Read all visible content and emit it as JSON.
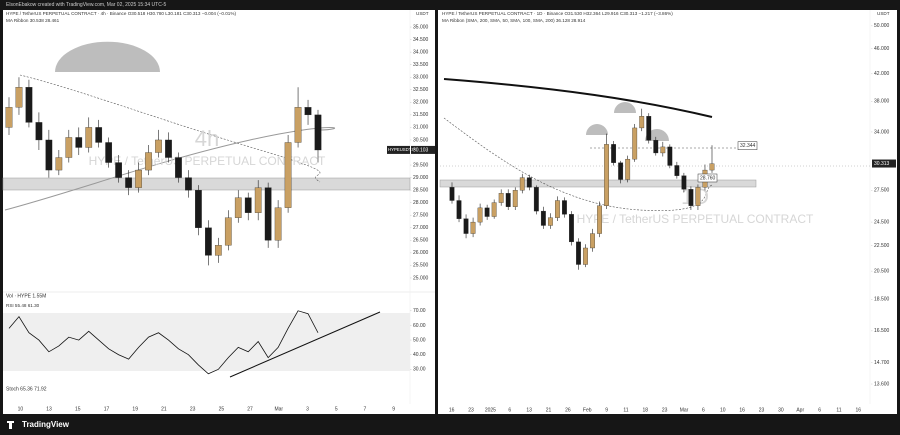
{
  "top_note": "ElsonEbakow created with TradingView.com, Mar 02, 2025 15:34 UTC-5",
  "chart_data": [
    {
      "type": "candlestick",
      "title": "HYPE / TetherUS PERPETUAL CONTRACT · 4h · Binance  O30.518 H30.780 L30.181 C30.313 −0.004 (−0.01%)",
      "indicator": "MA Ribbon 30.538 28.461",
      "watermark_interval": "4h",
      "watermark_symbol": "HYPE / TetherUS PERPETUAL CONTRACT",
      "currency": "USDT",
      "symbol_tag": "HYPEUSDT.P",
      "last_price": {
        "value": 30.103,
        "label": "30.103"
      },
      "volume_note": "Vol · HYPE 1.55M",
      "up_color": "#c9a063",
      "down_color": "#1a1a1a",
      "open": [
        31.0,
        31.8,
        32.6,
        31.2,
        30.5,
        29.3,
        29.8,
        30.6,
        30.2,
        31.0,
        30.4,
        29.6,
        29.0,
        28.6,
        29.3,
        30.0,
        30.5,
        29.8,
        29.0,
        28.5,
        27.0,
        25.9,
        26.3,
        27.4,
        28.2,
        27.6,
        28.6,
        26.5,
        27.8,
        30.4,
        31.8,
        31.5
      ],
      "high": [
        32.2,
        33.0,
        32.9,
        31.6,
        30.9,
        30.1,
        30.9,
        31.0,
        31.4,
        31.3,
        30.6,
        29.9,
        29.3,
        29.6,
        30.3,
        30.9,
        30.8,
        30.0,
        29.3,
        28.7,
        27.3,
        26.6,
        27.7,
        28.5,
        28.4,
        28.9,
        28.8,
        28.1,
        30.7,
        32.6,
        32.1,
        31.7
      ],
      "low": [
        30.7,
        31.5,
        31.0,
        30.1,
        29.0,
        29.1,
        29.6,
        29.9,
        30.0,
        30.2,
        29.4,
        28.8,
        28.3,
        28.4,
        29.1,
        29.8,
        29.6,
        28.8,
        28.2,
        26.7,
        25.5,
        25.6,
        26.1,
        27.2,
        27.3,
        27.3,
        26.2,
        26.2,
        27.6,
        30.2,
        31.1,
        29.6
      ],
      "close": [
        31.8,
        32.6,
        31.2,
        30.5,
        29.3,
        29.8,
        30.6,
        30.2,
        31.0,
        30.4,
        29.6,
        29.0,
        28.6,
        29.3,
        30.0,
        30.5,
        29.8,
        29.0,
        28.5,
        27.0,
        25.9,
        26.3,
        27.4,
        28.2,
        27.6,
        28.6,
        26.5,
        27.8,
        30.4,
        31.8,
        31.5,
        30.1
      ],
      "ylim": [
        24.6,
        35.6
      ],
      "yticks": [
        {
          "value": 35,
          "label": "35.000"
        },
        {
          "value": 34.5,
          "label": "34.500"
        },
        {
          "value": 34,
          "label": "34.000"
        },
        {
          "value": 33.5,
          "label": "33.500"
        },
        {
          "value": 33,
          "label": "33.000"
        },
        {
          "value": 32.5,
          "label": "32.500"
        },
        {
          "value": 32,
          "label": "32.000"
        },
        {
          "value": 31.5,
          "label": "31.500"
        },
        {
          "value": 31,
          "label": "31.000"
        },
        {
          "value": 30.5,
          "label": "30.500"
        },
        {
          "value": 29.5,
          "label": "29.500"
        },
        {
          "value": 29,
          "label": "29.000"
        },
        {
          "value": 28.5,
          "label": "28.500"
        },
        {
          "value": 28,
          "label": "28.000"
        },
        {
          "value": 27.5,
          "label": "27.500"
        },
        {
          "value": 27,
          "label": "27.000"
        },
        {
          "value": 26.5,
          "label": "26.500"
        },
        {
          "value": 26,
          "label": "26.000"
        },
        {
          "value": 25.5,
          "label": "25.500"
        },
        {
          "value": 25,
          "label": "25.000"
        }
      ],
      "x_labels": [
        "10",
        "13",
        "15",
        "17",
        "19",
        "21",
        "23",
        "25",
        "27",
        "Mar",
        "3",
        "5",
        "7",
        "9"
      ]
    },
    {
      "type": "line",
      "title": "RSI 55.48 61.30",
      "footer_note": "Stoch 65.36 71.92",
      "color": "#111111",
      "values": [
        58,
        66,
        55,
        50,
        42,
        46,
        52,
        50,
        56,
        50,
        44,
        40,
        37,
        45,
        52,
        55,
        50,
        44,
        40,
        33,
        27,
        30,
        38,
        45,
        42,
        49,
        38,
        45,
        58,
        70,
        68,
        55
      ],
      "ylim": [
        20,
        76
      ],
      "yticks": [
        {
          "value": 70,
          "label": "70.00"
        },
        {
          "value": 60,
          "label": "60.00"
        },
        {
          "value": 50,
          "label": "50.00"
        },
        {
          "value": 40,
          "label": "40.00"
        },
        {
          "value": 30,
          "label": "30.00"
        }
      ]
    },
    {
      "type": "candlestick",
      "title": "HYPE / TetherUS PERPETUAL CONTRACT · 1D · Binance  O31.530 H32.364 L29.916 C30.313 −1.217 (−3.86%)",
      "indicator": "MA Ribbon (SMA, 200, SMA, 50, SMA, 100, SMA, 200) 36.128 28.914",
      "watermark_interval": "1D",
      "watermark_symbol": "HYPE / TetherUS PERPETUAL CONTRACT",
      "currency": "USDT",
      "last_price": {
        "value": 30.313,
        "label": "30.313"
      },
      "price_flags": [
        {
          "value": 32.344,
          "label": "32.344"
        },
        {
          "value": 28.76,
          "label": "28.760"
        }
      ],
      "log_scale": true,
      "up_color": "#c9a063",
      "down_color": "#1a1a1a",
      "open": [
        27.8,
        26.5,
        24.8,
        23.5,
        24.5,
        25.8,
        25.0,
        26.3,
        27.2,
        25.9,
        27.5,
        28.8,
        27.8,
        25.5,
        24.2,
        24.9,
        26.5,
        25.2,
        22.8,
        21.0,
        22.3,
        23.5,
        26.0,
        32.5,
        30.4,
        28.6,
        30.8,
        34.5,
        36.0,
        33.0,
        31.5,
        32.2,
        30.1,
        29.0,
        27.6,
        26.0,
        27.8,
        29.6
      ],
      "high": [
        28.3,
        27.0,
        25.2,
        24.9,
        26.2,
        26.1,
        26.6,
        27.6,
        27.6,
        27.8,
        29.2,
        29.1,
        28.0,
        25.9,
        25.3,
        26.9,
        26.8,
        25.5,
        23.1,
        22.6,
        23.9,
        26.4,
        33.8,
        32.9,
        30.6,
        31.2,
        35.0,
        37.0,
        36.4,
        33.4,
        32.8,
        32.5,
        30.5,
        29.3,
        27.9,
        28.1,
        30.2,
        32.4
      ],
      "low": [
        26.2,
        24.5,
        23.1,
        23.2,
        24.2,
        24.7,
        24.8,
        26.0,
        25.6,
        25.6,
        27.2,
        27.5,
        25.2,
        23.9,
        23.9,
        24.6,
        24.9,
        22.5,
        20.6,
        20.8,
        22.0,
        23.2,
        25.7,
        30.1,
        28.2,
        28.3,
        30.5,
        34.1,
        32.6,
        31.2,
        31.1,
        29.8,
        28.7,
        27.3,
        25.6,
        25.6,
        27.5,
        29.3
      ],
      "close": [
        26.5,
        24.8,
        23.5,
        24.5,
        25.8,
        25.0,
        26.3,
        27.2,
        25.9,
        27.5,
        28.8,
        27.8,
        25.5,
        24.2,
        24.9,
        26.5,
        25.2,
        22.8,
        21.0,
        22.3,
        23.5,
        26.0,
        32.5,
        30.4,
        28.6,
        30.8,
        34.5,
        36.0,
        33.0,
        31.5,
        32.2,
        30.1,
        29.0,
        27.6,
        26.0,
        27.8,
        29.6,
        30.3
      ],
      "ylim": [
        12.74,
        52.2
      ],
      "yticks": [
        {
          "value": 50,
          "label": "50.000"
        },
        {
          "value": 46,
          "label": "46.000"
        },
        {
          "value": 42,
          "label": "42.000"
        },
        {
          "value": 38,
          "label": "38.000"
        },
        {
          "value": 34,
          "label": "34.000"
        },
        {
          "value": 27.5,
          "label": "27.500"
        },
        {
          "value": 24.5,
          "label": "24.500"
        },
        {
          "value": 22.5,
          "label": "22.500"
        },
        {
          "value": 20.5,
          "label": "20.500"
        },
        {
          "value": 18.5,
          "label": "18.500"
        },
        {
          "value": 16.5,
          "label": "16.500"
        },
        {
          "value": 14.7,
          "label": "14.700"
        },
        {
          "value": 13.6,
          "label": "13.600"
        }
      ],
      "x_labels": [
        "16",
        "23",
        "2025",
        "6",
        "13",
        "21",
        "26",
        "Feb",
        "9",
        "11",
        "18",
        "23",
        "Mar",
        "6",
        "10",
        "16",
        "23",
        "30",
        "Apr",
        "6",
        "11",
        "16"
      ]
    }
  ],
  "footer": {
    "brand": "TradingView"
  }
}
